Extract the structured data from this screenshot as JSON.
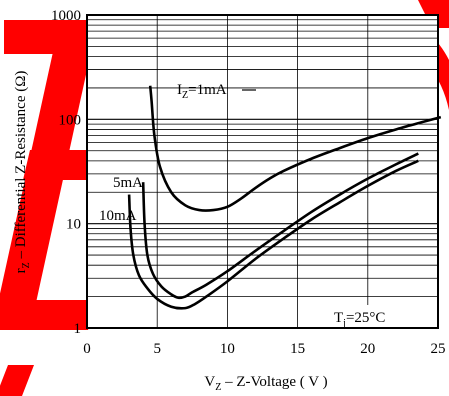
{
  "watermark": {
    "text": "ECQ",
    "color": "#ff0000"
  },
  "chart_data": {
    "type": "line",
    "xlabel_main": "V",
    "xlabel_sub": "Z",
    "xlabel_rest": " – Z-Voltage ( V )",
    "ylabel_main": "r",
    "ylabel_sub": "Z",
    "ylabel_rest": " – Differential Z-Resistance (Ω)",
    "xlim": [
      0,
      25
    ],
    "ylim": [
      1,
      1000
    ],
    "yscale": "log",
    "x_ticks": [
      "0",
      "5",
      "10",
      "15",
      "20",
      "25"
    ],
    "y_ticks": [
      "1",
      "10",
      "100",
      "1000"
    ],
    "grid": true,
    "annotation": {
      "main": "T",
      "sub": "j",
      "rest": "=25°C"
    },
    "series": [
      {
        "name_main": "I",
        "name_sub": "Z",
        "name_rest": "=1mA",
        "x": [
          4.5,
          4.6,
          4.8,
          5.2,
          6.0,
          7.0,
          8.0,
          9.0,
          10.0,
          11.0,
          12.0,
          13.0,
          14.0,
          16.0,
          18.0,
          20.0,
          22.0,
          24.0,
          25.2
        ],
        "y": [
          210,
          150,
          70,
          35,
          20,
          15,
          13.5,
          13.5,
          14.5,
          17.5,
          22,
          27,
          32,
          42,
          53,
          66,
          80,
          95,
          105
        ]
      },
      {
        "name": "5mA",
        "x": [
          4.0,
          4.1,
          4.3,
          4.7,
          5.3,
          6.0,
          6.5,
          7.0,
          7.5,
          8.5,
          10.0,
          12.0,
          14.0,
          16.0,
          18.0,
          20.0,
          22.0,
          23.6
        ],
        "y": [
          25,
          10,
          5,
          3.3,
          2.5,
          2.1,
          1.95,
          2.0,
          2.2,
          2.6,
          3.5,
          5.5,
          8.5,
          13,
          19,
          27,
          37,
          47
        ]
      },
      {
        "name": "10mA",
        "x": [
          3.0,
          3.1,
          3.3,
          3.7,
          4.3,
          5.0,
          6.0,
          7.0,
          7.7,
          8.5,
          10.0,
          12.0,
          14.0,
          16.0,
          18.0,
          20.0,
          22.0,
          23.6
        ],
        "y": [
          19,
          9,
          5,
          3.2,
          2.4,
          1.9,
          1.6,
          1.55,
          1.7,
          2.0,
          2.8,
          4.6,
          7.2,
          11,
          16,
          23,
          32,
          40
        ]
      }
    ]
  }
}
